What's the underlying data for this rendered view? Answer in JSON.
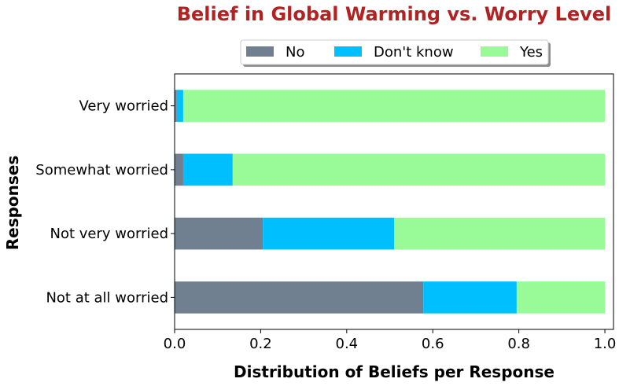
{
  "chart_data": {
    "type": "bar",
    "orientation": "horizontal",
    "stacked": true,
    "title": "Belief in Global Warming vs. Worry Level",
    "xlabel": "Distribution of Beliefs per Response",
    "ylabel": "Responses",
    "xlim": [
      0.0,
      1.02
    ],
    "xticks": [
      "0.0",
      "0.2",
      "0.4",
      "0.6",
      "0.8",
      "1.0"
    ],
    "xtick_values": [
      0.0,
      0.2,
      0.4,
      0.6,
      0.8,
      1.0
    ],
    "categories": [
      "Not at all worried",
      "Not very worried",
      "Somewhat worried",
      "Very worried"
    ],
    "series": [
      {
        "name": "No",
        "color": "#708090",
        "values": [
          0.578,
          0.205,
          0.02,
          0.005
        ]
      },
      {
        "name": "Don't know",
        "color": "#00bfff",
        "values": [
          0.217,
          0.305,
          0.115,
          0.015
        ]
      },
      {
        "name": "Yes",
        "color": "#98fb98",
        "values": [
          0.205,
          0.49,
          0.865,
          0.98
        ]
      }
    ],
    "legend_position": "top-center",
    "title_color": "#b22222",
    "grid": false
  }
}
